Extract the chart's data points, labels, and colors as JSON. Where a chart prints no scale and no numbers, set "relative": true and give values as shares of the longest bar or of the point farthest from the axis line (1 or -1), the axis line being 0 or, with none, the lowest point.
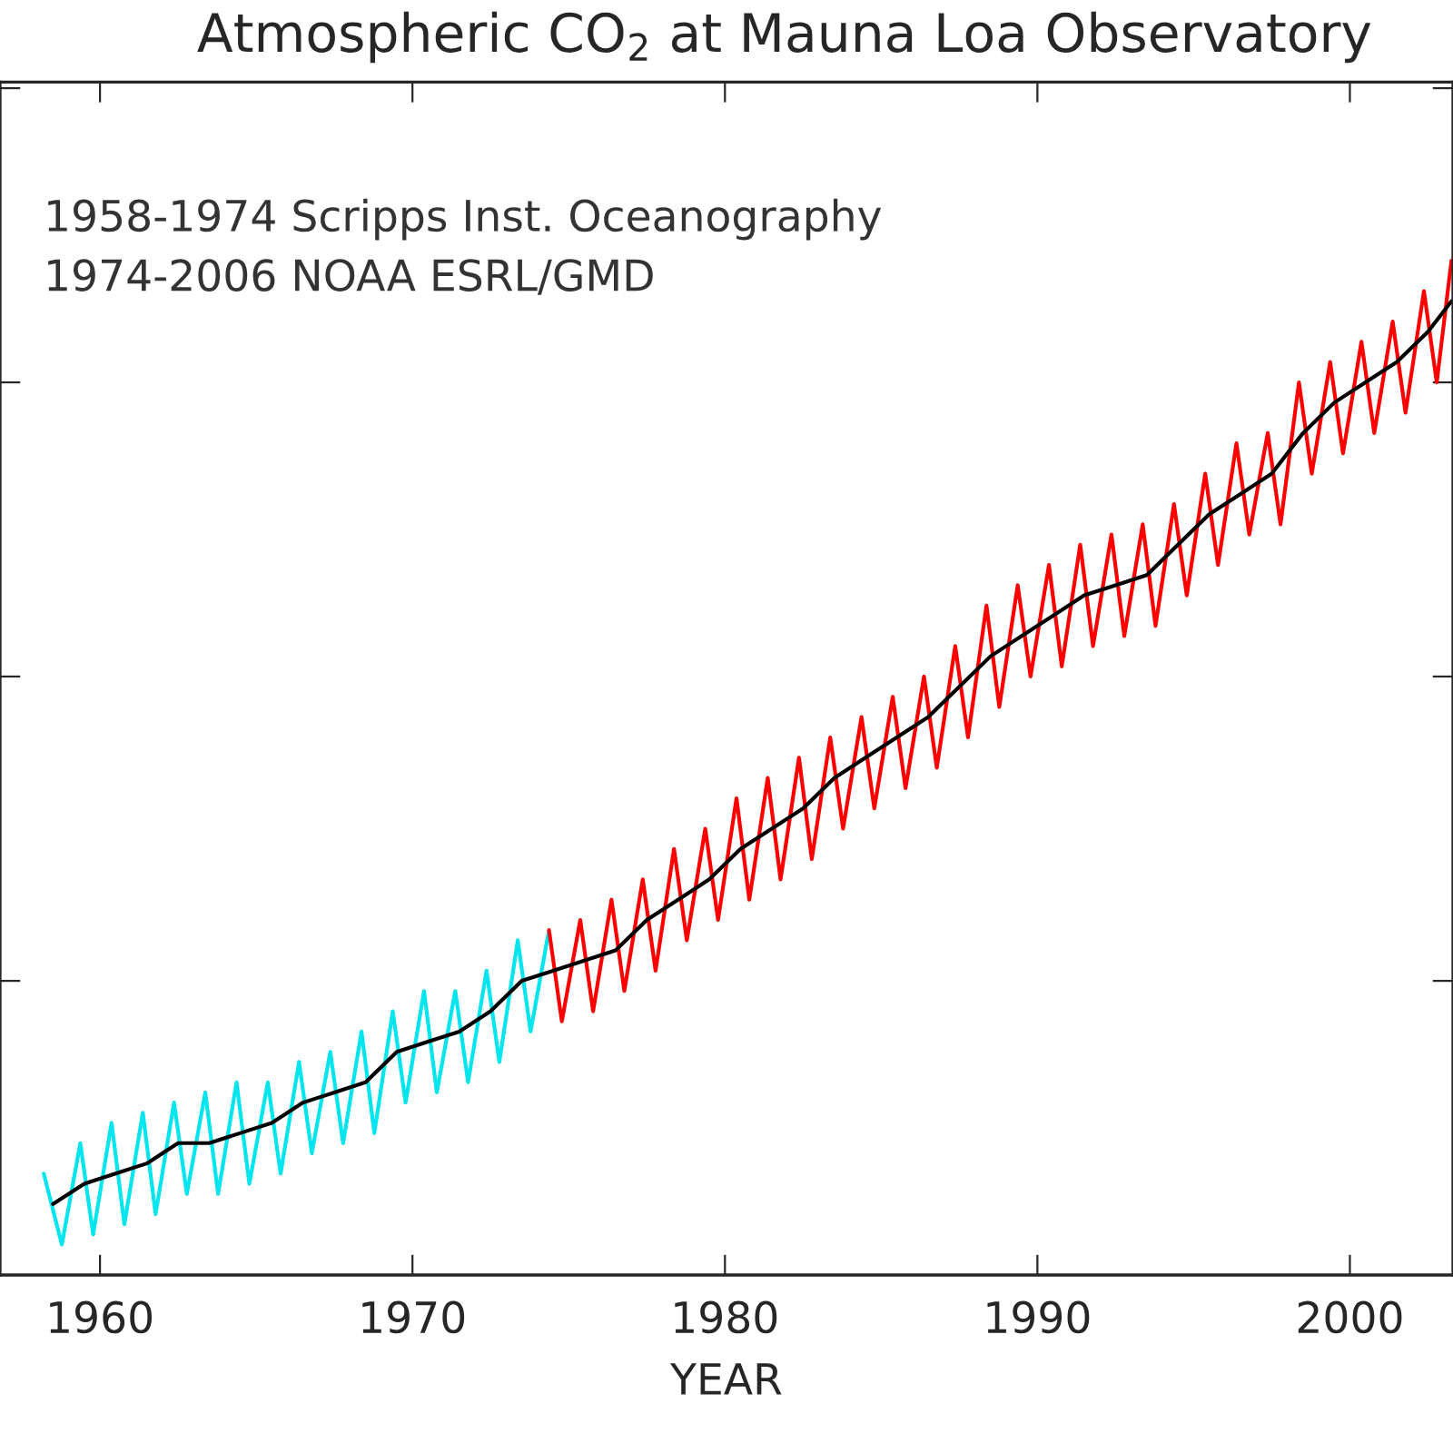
{
  "chart_data": {
    "type": "line",
    "title": "Atmospheric CO$_{2}$ at Mauna Loa Observatory",
    "xlabel": "YEAR",
    "relative": true,
    "tick_labels": "x",
    "grid": false,
    "legend": false,
    "marker": "none",
    "line_style": "solid",
    "xlim": [
      1956.8,
      2003.3
    ],
    "xticks": [
      1960,
      1970,
      1980,
      1990,
      2000
    ],
    "annotations": [
      "1958-1974 Scripps Inst. Oceanography",
      "1974-2006 NOAA ESRL/GMD"
    ],
    "series": [
      {
        "color": "#00e5ee",
        "x": [
          1958.2,
          1958.78,
          1959.37,
          1959.78,
          1960.37,
          1960.78,
          1961.37,
          1961.78,
          1962.37,
          1962.78,
          1963.37,
          1963.78,
          1964.37,
          1964.78,
          1965.37,
          1965.78,
          1966.37,
          1966.78,
          1967.37,
          1967.78,
          1968.37,
          1968.78,
          1969.37,
          1969.78,
          1970.37,
          1970.78,
          1971.37,
          1971.78,
          1972.37,
          1972.78,
          1973.37,
          1973.78,
          1974.37
        ],
        "values": [
          0.1,
          0.03,
          0.13,
          0.04,
          0.15,
          0.05,
          0.16,
          0.06,
          0.17,
          0.08,
          0.18,
          0.08,
          0.19,
          0.09,
          0.19,
          0.1,
          0.21,
          0.12,
          0.22,
          0.13,
          0.24,
          0.14,
          0.26,
          0.17,
          0.28,
          0.18,
          0.28,
          0.19,
          0.3,
          0.21,
          0.33,
          0.24,
          0.34
        ]
      },
      {
        "color": "#ff0000",
        "x": [
          1974.37,
          1974.78,
          1975.37,
          1975.78,
          1976.37,
          1976.78,
          1977.37,
          1977.78,
          1978.37,
          1978.78,
          1979.37,
          1979.78,
          1980.37,
          1980.78,
          1981.37,
          1981.78,
          1982.37,
          1982.78,
          1983.37,
          1983.78,
          1984.37,
          1984.78,
          1985.37,
          1985.78,
          1986.37,
          1986.78,
          1987.37,
          1987.78,
          1988.37,
          1988.78,
          1989.37,
          1989.78,
          1990.37,
          1990.78,
          1991.37,
          1991.78,
          1992.37,
          1992.78,
          1993.37,
          1993.78,
          1994.37,
          1994.78,
          1995.37,
          1995.78,
          1996.37,
          1996.78,
          1997.37,
          1997.78,
          1998.37,
          1998.78,
          1999.37,
          1999.78,
          2000.37,
          2000.78,
          2001.37,
          2001.78,
          2002.37,
          2002.78,
          2003.25
        ],
        "values": [
          0.34,
          0.25,
          0.35,
          0.26,
          0.37,
          0.28,
          0.39,
          0.3,
          0.42,
          0.33,
          0.44,
          0.35,
          0.47,
          0.37,
          0.49,
          0.39,
          0.51,
          0.41,
          0.53,
          0.44,
          0.55,
          0.46,
          0.57,
          0.48,
          0.59,
          0.5,
          0.62,
          0.53,
          0.66,
          0.56,
          0.68,
          0.59,
          0.7,
          0.6,
          0.72,
          0.62,
          0.73,
          0.63,
          0.74,
          0.64,
          0.76,
          0.67,
          0.79,
          0.7,
          0.82,
          0.73,
          0.83,
          0.74,
          0.88,
          0.79,
          0.9,
          0.81,
          0.92,
          0.83,
          0.94,
          0.85,
          0.97,
          0.88,
          1.0
        ]
      },
      {
        "color": "#000000",
        "x": [
          1958.5,
          1959.5,
          1960.5,
          1961.5,
          1962.5,
          1963.5,
          1964.5,
          1965.5,
          1966.5,
          1967.5,
          1968.5,
          1969.5,
          1970.5,
          1971.5,
          1972.5,
          1973.5,
          1974.5,
          1975.5,
          1976.5,
          1977.5,
          1978.5,
          1979.5,
          1980.5,
          1981.5,
          1982.5,
          1983.5,
          1984.5,
          1985.5,
          1986.5,
          1987.5,
          1988.5,
          1989.5,
          1990.5,
          1991.5,
          1992.5,
          1993.5,
          1994.5,
          1995.5,
          1996.5,
          1997.5,
          1998.5,
          1999.5,
          2000.5,
          2001.5,
          2002.5,
          2003.25
        ],
        "values": [
          0.07,
          0.09,
          0.1,
          0.11,
          0.13,
          0.13,
          0.14,
          0.15,
          0.17,
          0.18,
          0.19,
          0.22,
          0.23,
          0.24,
          0.26,
          0.29,
          0.3,
          0.31,
          0.32,
          0.35,
          0.37,
          0.39,
          0.42,
          0.44,
          0.46,
          0.49,
          0.51,
          0.53,
          0.55,
          0.58,
          0.61,
          0.63,
          0.65,
          0.67,
          0.68,
          0.69,
          0.72,
          0.75,
          0.77,
          0.79,
          0.83,
          0.86,
          0.88,
          0.9,
          0.93,
          0.96
        ]
      }
    ]
  }
}
